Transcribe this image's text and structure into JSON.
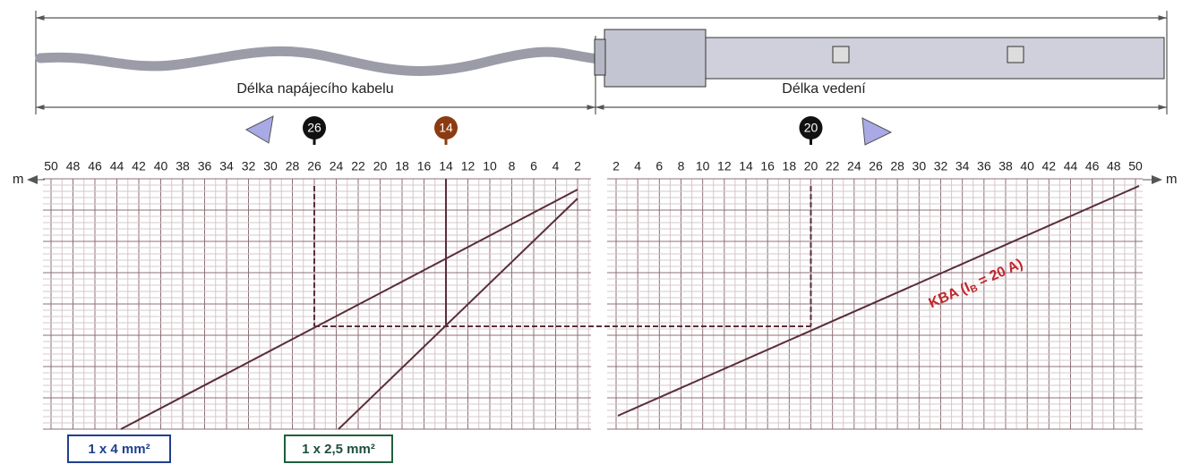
{
  "header": {
    "cable_label": "Délka napájecího kabelu",
    "line_label": "Délka vedení"
  },
  "scale": {
    "unit": "m",
    "left_ticks": [
      50,
      48,
      46,
      44,
      42,
      40,
      38,
      36,
      34,
      32,
      30,
      28,
      26,
      24,
      22,
      20,
      18,
      16,
      14,
      12,
      10,
      8,
      6,
      4,
      2
    ],
    "right_ticks": [
      2,
      4,
      6,
      8,
      10,
      12,
      14,
      16,
      18,
      20,
      22,
      24,
      26,
      28,
      30,
      32,
      34,
      36,
      38,
      40,
      42,
      44,
      46,
      48,
      50
    ]
  },
  "left_markers": [
    {
      "value": 26,
      "color": "#111111"
    },
    {
      "value": 14,
      "color": "#8b3b12"
    }
  ],
  "right_markers": [
    {
      "value": 20,
      "color": "#111111"
    }
  ],
  "curves": {
    "cable_4": "1 x 4 mm²",
    "cable_2_5": "1 x 2,5 mm²",
    "kba": {
      "prefix": "KBA (I",
      "sub": "B",
      "suffix": " = 20 A)"
    }
  }
}
